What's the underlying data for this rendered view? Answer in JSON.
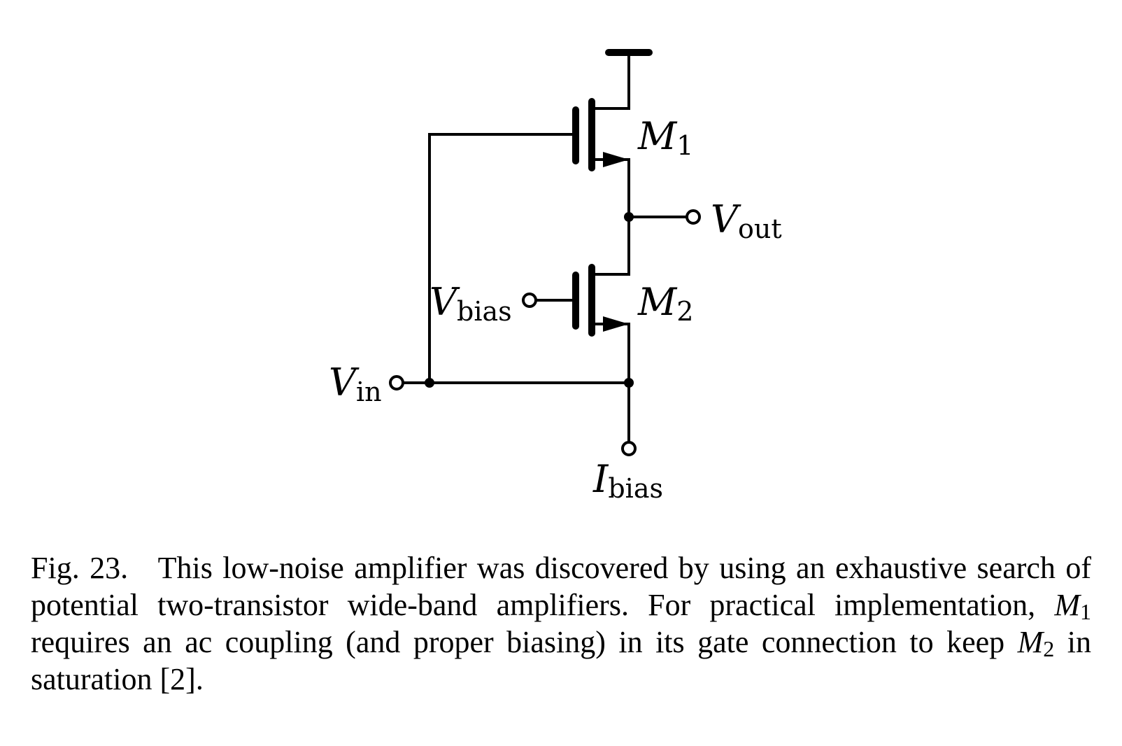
{
  "labels": {
    "m1": {
      "main": "M",
      "sub": "1"
    },
    "m2": {
      "main": "M",
      "sub": "2"
    },
    "vout": {
      "main": "V",
      "sub": "out"
    },
    "vbias": {
      "main": "V",
      "sub": "bias"
    },
    "vin": {
      "main": "V",
      "sub": "in"
    },
    "ibias": {
      "main": "I",
      "sub": "bias"
    }
  },
  "caption": {
    "prefix": "Fig. 23.",
    "part1": "This low-noise amplifier was discovered by using an exhaustive search of potential two-transistor wide-band amplifiers. For practical implementation,",
    "m1_main": "M",
    "m1_sub": "1",
    "part2": "requires an ac coupling (and proper biasing) in its gate connection to keep",
    "m2_main": "M",
    "m2_sub": "2",
    "part3": "in saturation [2]."
  }
}
